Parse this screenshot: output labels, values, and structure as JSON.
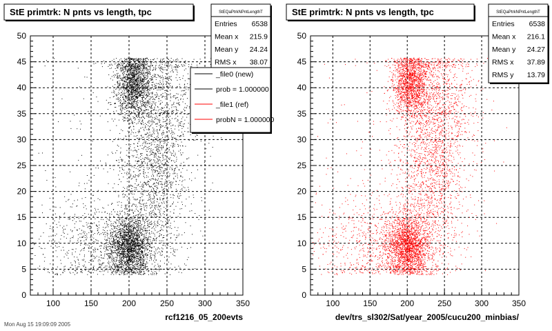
{
  "footer_text": "Mon Aug 15 19:09:09 2005",
  "colors": {
    "left_points": "#000000",
    "right_points": "#ff0000",
    "legend_new": "#000000",
    "legend_ref": "#ff0000"
  },
  "chart_data": [
    {
      "type": "scatter",
      "title": "StE primtrk: N pnts vs length, tpc",
      "xlabel": "rcf1216_05_200evts",
      "ylabel": "",
      "xlim": [
        70,
        350
      ],
      "ylim": [
        0,
        50
      ],
      "x_ticks": [
        100,
        150,
        200,
        250,
        300,
        350
      ],
      "y_ticks": [
        0,
        5,
        10,
        15,
        20,
        25,
        30,
        35,
        40,
        45,
        50
      ],
      "grid": true,
      "point_color": "#000000",
      "stats_box": {
        "name": "StEQaPtrkNPntLengthT",
        "rows": [
          {
            "label": "Entries",
            "value": "6538"
          },
          {
            "label": "Mean x",
            "value": "215.9"
          },
          {
            "label": "Mean y",
            "value": "24.24"
          },
          {
            "label": "RMS x",
            "value": "38.07"
          }
        ]
      },
      "legend": {
        "placement": "top-right",
        "entries": [
          {
            "label": "_file0 (new)",
            "color": "#000000"
          },
          {
            "label": "prob = 1.000000",
            "color": "#000000"
          },
          {
            "label": "_file1 (ref)",
            "color": "#ff0000"
          },
          {
            "label": "probN = 1.000000",
            "color": "#ff0000"
          }
        ]
      },
      "entries": 6538,
      "distribution": {
        "clusters": [
          {
            "x": 205,
            "y": 41,
            "sx": 12,
            "sy": 3.2,
            "n": 1500
          },
          {
            "x": 200,
            "y": 9.5,
            "sx": 14,
            "sy": 3.0,
            "n": 1900
          },
          {
            "x": 230,
            "y": 25,
            "sx": 22,
            "sy": 10,
            "n": 1600
          },
          {
            "x": 160,
            "y": 10,
            "sx": 40,
            "sy": 4.5,
            "n": 700
          },
          {
            "x": 245,
            "y": 38,
            "sx": 25,
            "sy": 6,
            "n": 600
          },
          {
            "x": 200,
            "y": 25,
            "sx": 60,
            "sy": 15,
            "n": 238
          }
        ]
      }
    },
    {
      "type": "scatter",
      "title": "StE primtrk: N pnts vs length, tpc",
      "xlabel": "dev/trs_sl302/Sat/year_2005/cucu200_minbias/",
      "ylabel": "",
      "xlim": [
        70,
        350
      ],
      "ylim": [
        0,
        50
      ],
      "x_ticks": [
        100,
        150,
        200,
        250,
        300,
        350
      ],
      "y_ticks": [
        0,
        5,
        10,
        15,
        20,
        25,
        30,
        35,
        40,
        45,
        50
      ],
      "grid": true,
      "point_color": "#ff0000",
      "stats_box": {
        "name": "StEQaPtrkNPntLengthT",
        "rows": [
          {
            "label": "Entries",
            "value": "6538"
          },
          {
            "label": "Mean x",
            "value": "216.1"
          },
          {
            "label": "Mean y",
            "value": "24.27"
          },
          {
            "label": "RMS x",
            "value": "37.89"
          },
          {
            "label": "RMS y",
            "value": "13.79"
          }
        ]
      },
      "entries": 6538,
      "distribution": {
        "clusters": [
          {
            "x": 205,
            "y": 41,
            "sx": 12,
            "sy": 3.2,
            "n": 1500
          },
          {
            "x": 200,
            "y": 9.5,
            "sx": 14,
            "sy": 3.0,
            "n": 1900
          },
          {
            "x": 230,
            "y": 25,
            "sx": 22,
            "sy": 10,
            "n": 1600
          },
          {
            "x": 160,
            "y": 10,
            "sx": 40,
            "sy": 4.5,
            "n": 700
          },
          {
            "x": 245,
            "y": 38,
            "sx": 25,
            "sy": 6,
            "n": 600
          },
          {
            "x": 200,
            "y": 25,
            "sx": 60,
            "sy": 15,
            "n": 238
          }
        ]
      }
    }
  ]
}
